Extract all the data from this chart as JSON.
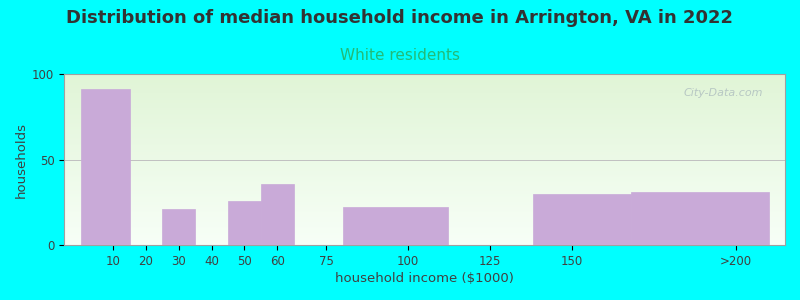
{
  "title": "Distribution of median household income in Arrington, VA in 2022",
  "subtitle": "White residents",
  "xlabel": "household income ($1000)",
  "ylabel": "households",
  "title_fontsize": 13,
  "subtitle_fontsize": 11,
  "subtitle_color": "#22bb77",
  "background_outer": "#00ffff",
  "bar_color": "#c9aad8",
  "bar_edgecolor": "#c9aad8",
  "yticks": [
    0,
    50,
    100
  ],
  "watermark": "City-Data.com",
  "tick_labels": [
    "10",
    "20",
    "30",
    "40",
    "50",
    "60",
    "75",
    "100",
    "125",
    "150",
    ">200"
  ],
  "tick_positions": [
    10,
    20,
    30,
    40,
    50,
    60,
    75,
    100,
    125,
    150,
    200
  ],
  "bars": [
    {
      "x_left": 0,
      "x_right": 15,
      "height": 91
    },
    {
      "x_left": 25,
      "x_right": 35,
      "height": 21
    },
    {
      "x_left": 45,
      "x_right": 55,
      "height": 26
    },
    {
      "x_left": 55,
      "x_right": 65,
      "height": 36
    },
    {
      "x_left": 80,
      "x_right": 112,
      "height": 22
    },
    {
      "x_left": 138,
      "x_right": 168,
      "height": 30
    },
    {
      "x_left": 168,
      "x_right": 210,
      "height": 31
    }
  ],
  "xlim": [
    -5,
    215
  ],
  "ylim": [
    0,
    100
  ]
}
